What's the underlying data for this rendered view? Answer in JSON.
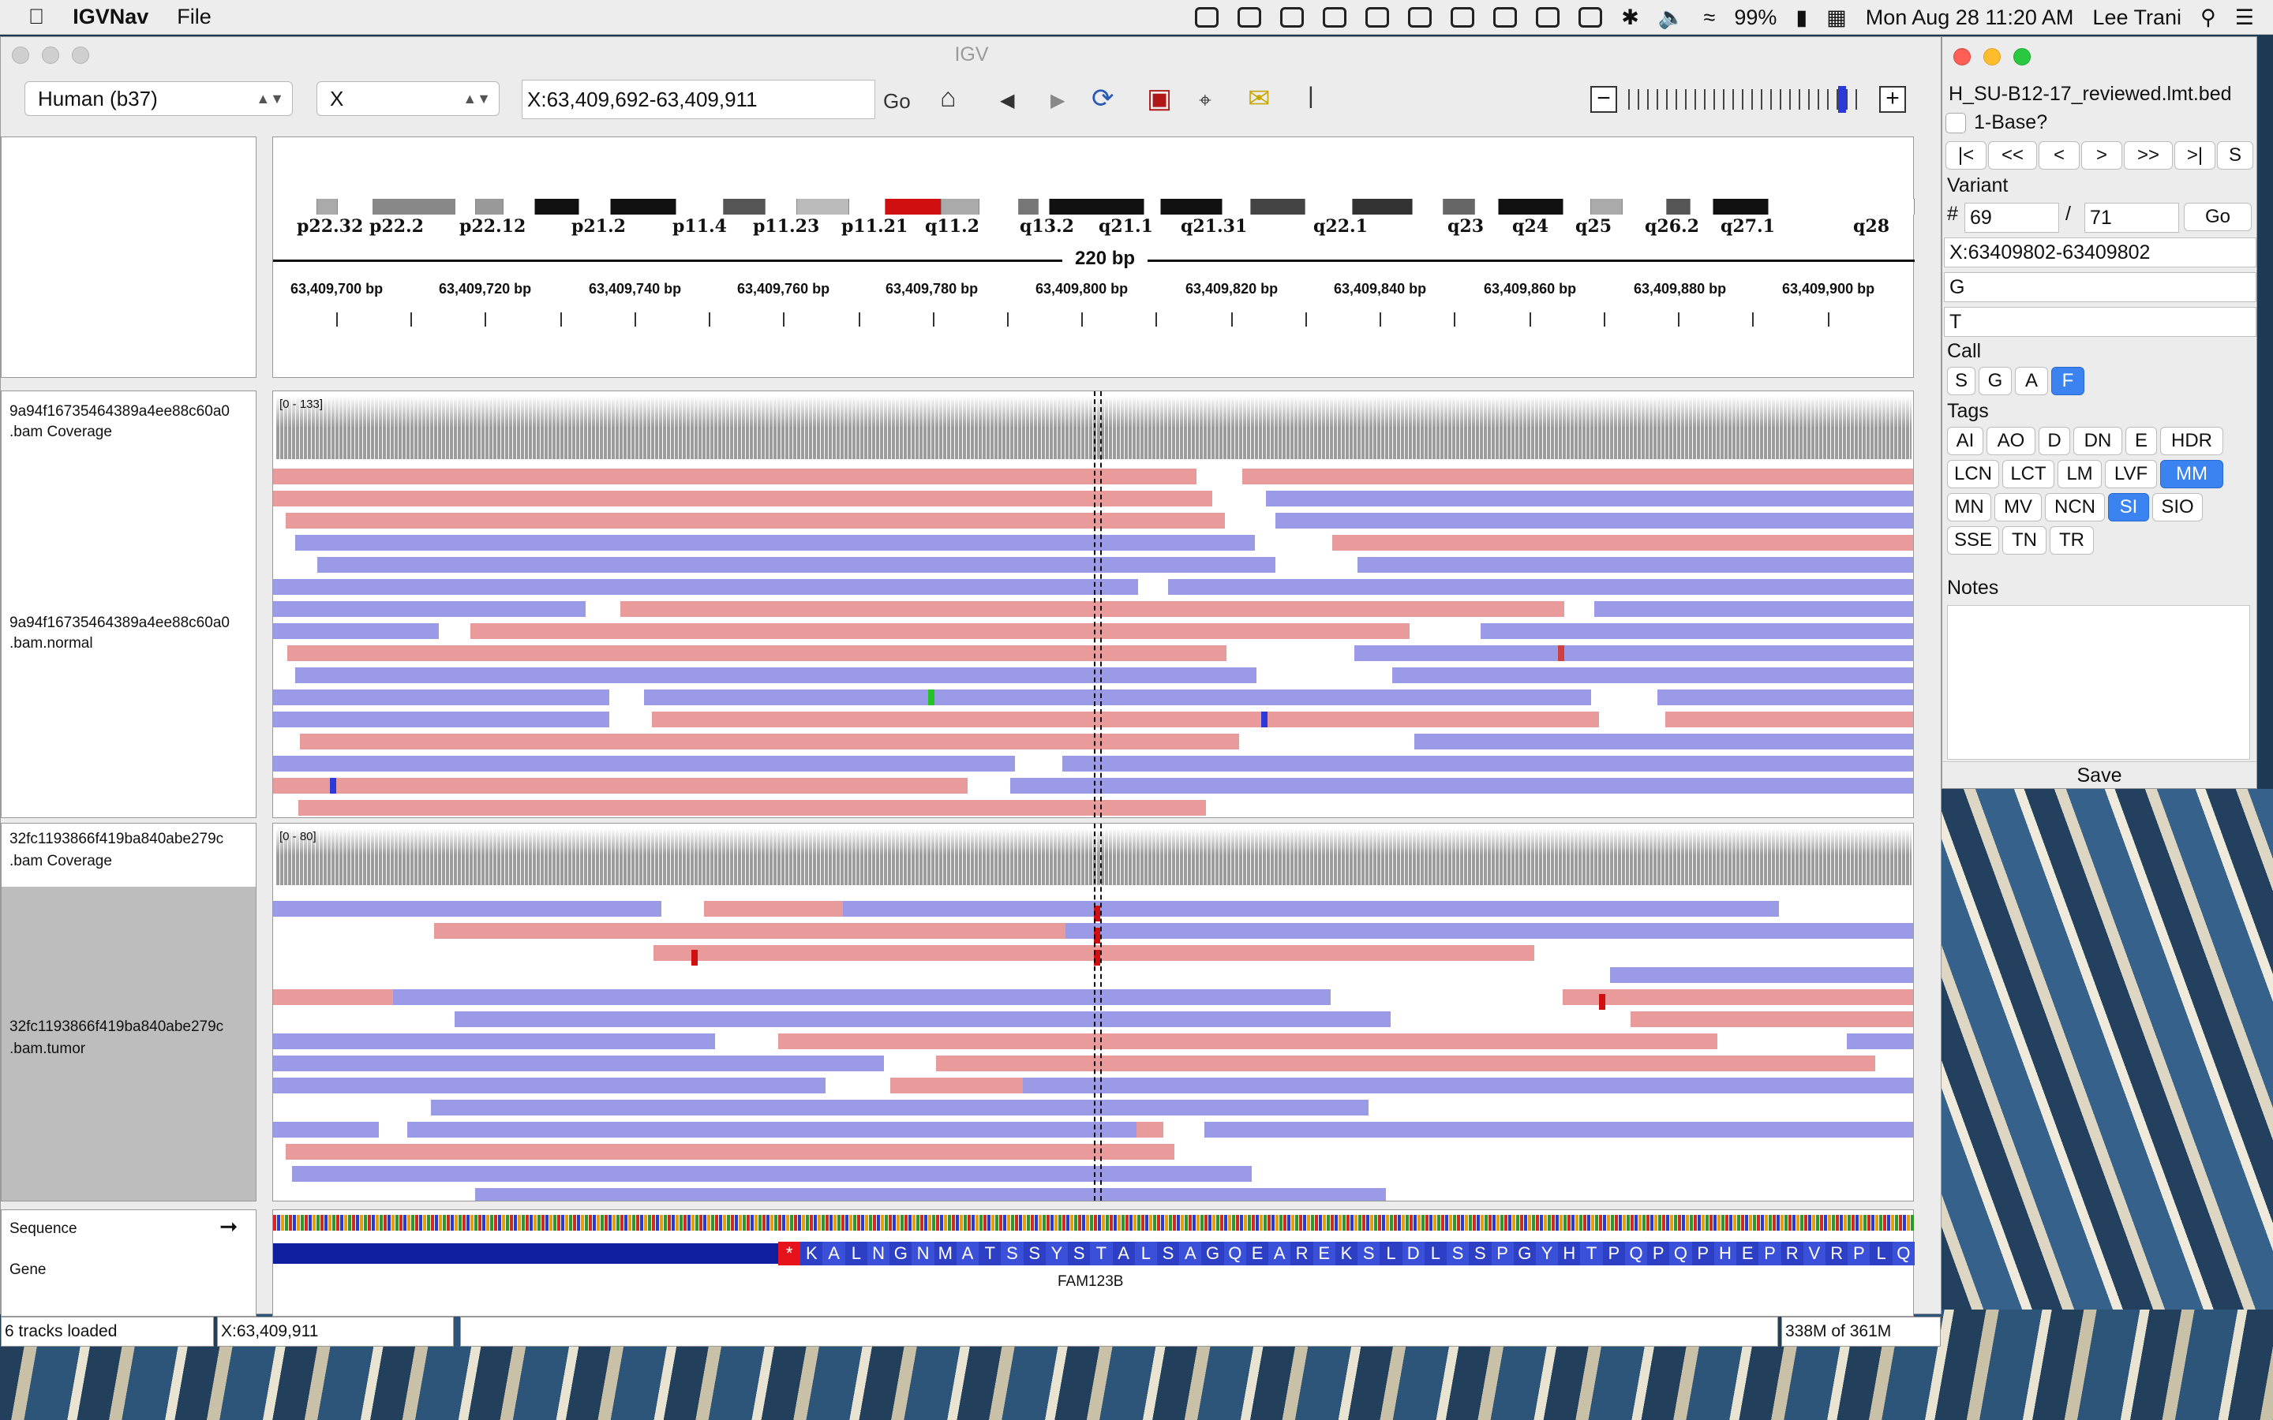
{
  "menubar": {
    "app": "IGVNav",
    "file": "File",
    "battery": "99%",
    "datetime": "Mon Aug 28  11:20 AM",
    "user": "Lee Trani"
  },
  "igv": {
    "title": "IGV",
    "genome": "Human (b37)",
    "chromosome": "X",
    "locus": "X:63,409,692-63,409,911",
    "go": "Go",
    "bands": [
      "p22.32",
      "p22.2",
      "p22.12",
      "p21.2",
      "p11.4",
      "p11.23",
      "p11.21",
      "q11.2",
      "q13.2",
      "q21.1",
      "q21.31",
      "q22.1",
      "q23",
      "q24",
      "q25",
      "q26.2",
      "q27.1",
      "q28"
    ],
    "span": "220 bp",
    "ruler": [
      "63,409,700 bp",
      "63,409,720 bp",
      "63,409,740 bp",
      "63,409,760 bp",
      "63,409,780 bp",
      "63,409,800 bp",
      "63,409,820 bp",
      "63,409,840 bp",
      "63,409,860 bp",
      "63,409,880 bp",
      "63,409,900 bp"
    ],
    "normal": {
      "name_cov": "9a94f16735464389a4ee88c60a0",
      "name_cov2": ".bam Coverage",
      "name_reads": "9a94f16735464389a4ee88c60a0",
      "name_reads2": ".bam.normal",
      "range": "[0 - 133]"
    },
    "tumor": {
      "name_cov": "32fc1193866f419ba840abe279c",
      "name_cov2": ".bam Coverage",
      "name_reads": "32fc1193866f419ba840abe279c",
      "name_reads2": ".bam.tumor",
      "range": "[0 - 80]"
    },
    "sequence": "Sequence",
    "gene_track": "Gene",
    "aa": [
      "*",
      "K",
      "A",
      "L",
      "N",
      "G",
      "N",
      "M",
      "A",
      "T",
      "S",
      "S",
      "Y",
      "S",
      "T",
      "A",
      "L",
      "S",
      "A",
      "G",
      "Q",
      "E",
      "A",
      "R",
      "E",
      "K",
      "S",
      "L",
      "D",
      "L",
      "S",
      "S",
      "P",
      "G",
      "Y",
      "H",
      "T",
      "P",
      "Q",
      "P",
      "Q",
      "P",
      "H",
      "E",
      "P",
      "R",
      "V",
      "R",
      "P",
      "L",
      "Q"
    ],
    "gene_name": "FAM123B",
    "status": {
      "tracks": "6 tracks loaded",
      "pos": "X:63,409,911",
      "mem": "338M of 361M"
    }
  },
  "nav": {
    "file": "H_SU-B12-17_reviewed.lmt.bed",
    "onebase": "1-Base?",
    "navbtns": [
      "|<",
      "<<",
      "<",
      ">",
      ">>",
      ">|",
      "S"
    ],
    "variant_label": "Variant",
    "hash": "#",
    "current": "69",
    "slash": "/",
    "total": "71",
    "go": "Go",
    "pos": "X:63409802-63409802",
    "ref": "G",
    "alt": "T",
    "call_label": "Call",
    "calls": [
      "S",
      "G",
      "A",
      "F"
    ],
    "tags_label": "Tags",
    "tags": [
      "AI",
      "AO",
      "D",
      "DN",
      "E",
      "HDR",
      "LCN",
      "LCT",
      "LM",
      "LVF",
      "MM",
      "MN",
      "MV",
      "NCN",
      "SI",
      "SIO",
      "SSE",
      "TN",
      "TR"
    ],
    "notes_label": "Notes",
    "save": "Save"
  }
}
